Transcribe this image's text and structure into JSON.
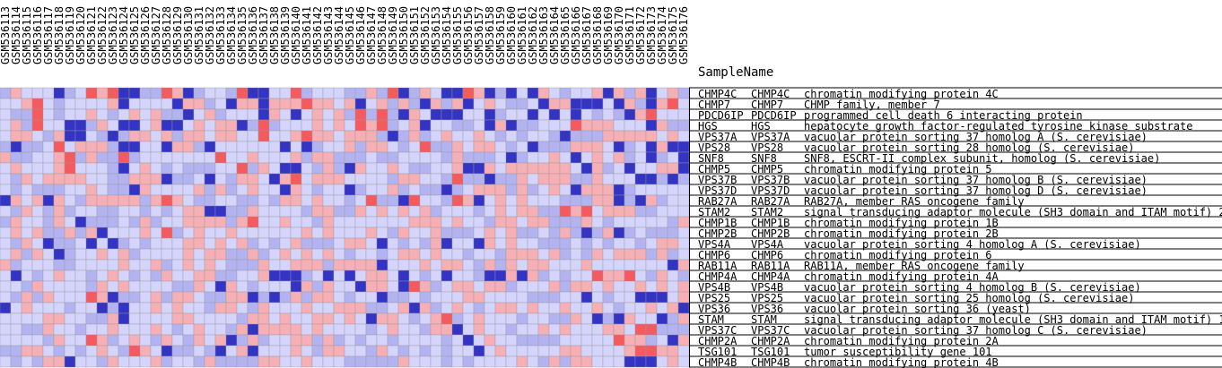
{
  "chart_data": {
    "type": "heatmap",
    "column_header": "SampleName",
    "samples": [
      "GSM536113",
      "GSM536114",
      "GSM536115",
      "GSM536116",
      "GSM536117",
      "GSM536118",
      "GSM536119",
      "GSM536120",
      "GSM536121",
      "GSM536122",
      "GSM536123",
      "GSM536124",
      "GSM536125",
      "GSM536126",
      "GSM536127",
      "GSM536128",
      "GSM536129",
      "GSM536130",
      "GSM536131",
      "GSM536132",
      "GSM536133",
      "GSM536134",
      "GSM536135",
      "GSM536136",
      "GSM536137",
      "GSM536138",
      "GSM536139",
      "GSM536140",
      "GSM536141",
      "GSM536142",
      "GSM536143",
      "GSM536144",
      "GSM536145",
      "GSM536146",
      "GSM536147",
      "GSM536148",
      "GSM536149",
      "GSM536150",
      "GSM536151",
      "GSM536152",
      "GSM536153",
      "GSM536154",
      "GSM536155",
      "GSM536156",
      "GSM536157",
      "GSM536158",
      "GSM536159",
      "GSM536160",
      "GSM536161",
      "GSM536162",
      "GSM536163",
      "GSM536164",
      "GSM536165",
      "GSM536166",
      "GSM536167",
      "GSM536168",
      "GSM536169",
      "GSM536170",
      "GSM536171",
      "GSM536172",
      "GSM536173",
      "GSM536174",
      "GSM536175",
      "GSM536176"
    ],
    "rows": [
      {
        "probe": "CHMP4C",
        "symbol": "CHMP4C",
        "description": "chromatin modifying protein 4C",
        "values": "1322201243400114301221400224122211314013200430102032122303130231"
      },
      {
        "probe": "CHMP7",
        "symbol": "CHMP7",
        "description": "CHMP family, member 7",
        "values": "2234212222302222033120330333433230231310313023211203300020310342"
      },
      {
        "probe": "PDCD6IP",
        "symbol": "PDCD6IP",
        "description": "programmed cell death 6 interacting protein",
        "values": "2114212232123231102312220320232314141032000220122020202121034222"
      },
      {
        "probe": "HGS",
        "symbol": "HGS",
        "description": "hepatocyte growth factor-regulated tyrosine kinase substrate",
        "values": "2314220013200230023233014122232324341230221120301122243332220311"
      },
      {
        "probe": "VPS37A",
        "symbol": "VPS37A",
        "description": "vacuolar protein sorting 37 homolog A (S. cerevisiae)",
        "values": "2332130021013323133233224223433233310131232232121221011133333232"
      },
      {
        "probe": "VPS28",
        "symbol": "VPS28",
        "description": "vacuolar protein sorting 28 homolog (S. cerevisiae)",
        "values": "1011242333100220331022222202012231332124113233212011133320120300"
      },
      {
        "probe": "SNF8",
        "symbol": "SNF8",
        "description": "SNF8, ESCRT-II complex subunit, homolog (S. cerevisiae)",
        "values": "3112234131141222222242232223133111211222213111201223202323120120"
      },
      {
        "probe": "CHMP5",
        "symbol": "CHMP5",
        "description": "chromatin modifying protein 5",
        "values": "2322234222102321211122413200213103223211223003233333320312022330"
      },
      {
        "probe": "VPS37B",
        "symbol": "VPS37B",
        "description": "vacuolar protein sorting 37 homolog B (S. cerevisiae)",
        "values": "2132333322113330112021332034233322221332214110113233311322200101"
      },
      {
        "probe": "VPS37D",
        "symbol": "VPS37D",
        "description": "vacuolar protein sorting 37 homolog D (S. cerevisiae)",
        "values": "2121112232110322223131232203212201223121101233313123203330122222"
      },
      {
        "probe": "RAB27A",
        "symbol": "RAB27A",
        "description": "RAB27A, member RAS oncogene family",
        "values": "0323032133333134321122112133232212411042214302323222111330103122"
      },
      {
        "probe": "STAM2",
        "symbol": "STAM2",
        "description": "signal transducing adaptor molecule (SH3 domain and ITAM motif) 2",
        "values": "2132131221122121233001132222133113232323122212323311434233311222"
      },
      {
        "probe": "CHMP1B",
        "symbol": "CHMP1B",
        "description": "chromatin modifying protein 1B",
        "values": "1322132011121312233331342232213222222233323221332331113212222213"
      },
      {
        "probe": "CHMP2B",
        "symbol": "CHMP2B",
        "description": "chromatin modifying protein 2B",
        "values": "2323113130222324123223222222323222321322311123231121310130121112"
      },
      {
        "probe": "VPS4A",
        "symbol": "VPS4A",
        "description": "vacuolar protein sorting 4 homolog A (S. cerevisiae)",
        "values": "2132011202012122233232312123111233202121302203232211121212212332"
      },
      {
        "probe": "CHMP6",
        "symbol": "CHMP6",
        "description": "chromatin modifying protein 6",
        "values": "2313201223231222232331131232323212212332322122133323121323331312"
      },
      {
        "probe": "RAB11A",
        "symbol": "RAB11A",
        "description": "RAB11A, member RAS oncogene family",
        "values": "3122211222232231232321113223331333302223233213132332223222222203"
      },
      {
        "probe": "CHMP4A",
        "symbol": "CHMP4A",
        "description": "chromatin modifying protein 4A",
        "values": "2021232212321213223311223000120202332021202210030312122433421321"
      },
      {
        "probe": "VPS4B",
        "symbol": "VPS4B",
        "description": "vacuolar protein sorting 4 homolog B (S. cerevisiae)",
        "values": "2213222213232222113203212220313220332043123323312223133232232323"
      },
      {
        "probe": "VPS25",
        "symbol": "VPS25",
        "description": "vacuolar protein sorting 25 homolog (S. cerevisiae)",
        "values": "2131322243011231332113301013133212201121222332222111220212200023"
      },
      {
        "probe": "VPS36",
        "symbol": "VPS36",
        "description": "vacuolar protein sorting 36 (yeast)",
        "values": "0232221220102232322133213222322333112303123212332322322321223230"
      },
      {
        "probe": "STAM",
        "symbol": "STAM",
        "description": "signal transducing adaptor molecule (SH3 domain and ITAM motif) 1",
        "values": "2222332211302222332222133232233232033212341232221221132010322013"
      },
      {
        "probe": "VPS37C",
        "symbol": "VPS37C",
        "description": "vacuolar protein sorting 37 homolog C (S. cerevisiae)",
        "values": "2211322122322232123221303333232222123221330232212232322233244111"
      },
      {
        "probe": "CHMP2A",
        "symbol": "CHMP2A",
        "description": "chromatin modifying protein 2A",
        "values": "2222132243123213213230131223313121221222212023221111222224331203"
      },
      {
        "probe": "TSG101",
        "symbol": "TSG101",
        "description": "tumor susceptibility gene 101",
        "values": "1133212123214320112102302223213322132121212202322222332222344332"
      },
      {
        "probe": "CHMP4B",
        "symbol": "CHMP4B",
        "description": "chromatin modifying protein 4B",
        "values": "2121330221322231221311113322322211111322212122223213133222000232"
      }
    ],
    "color_scale": {
      "0": "#3333c4",
      "1": "#b3b3f2",
      "2": "#d4d4fc",
      "3": "#f6b0b5",
      "4": "#f45a5e"
    }
  }
}
